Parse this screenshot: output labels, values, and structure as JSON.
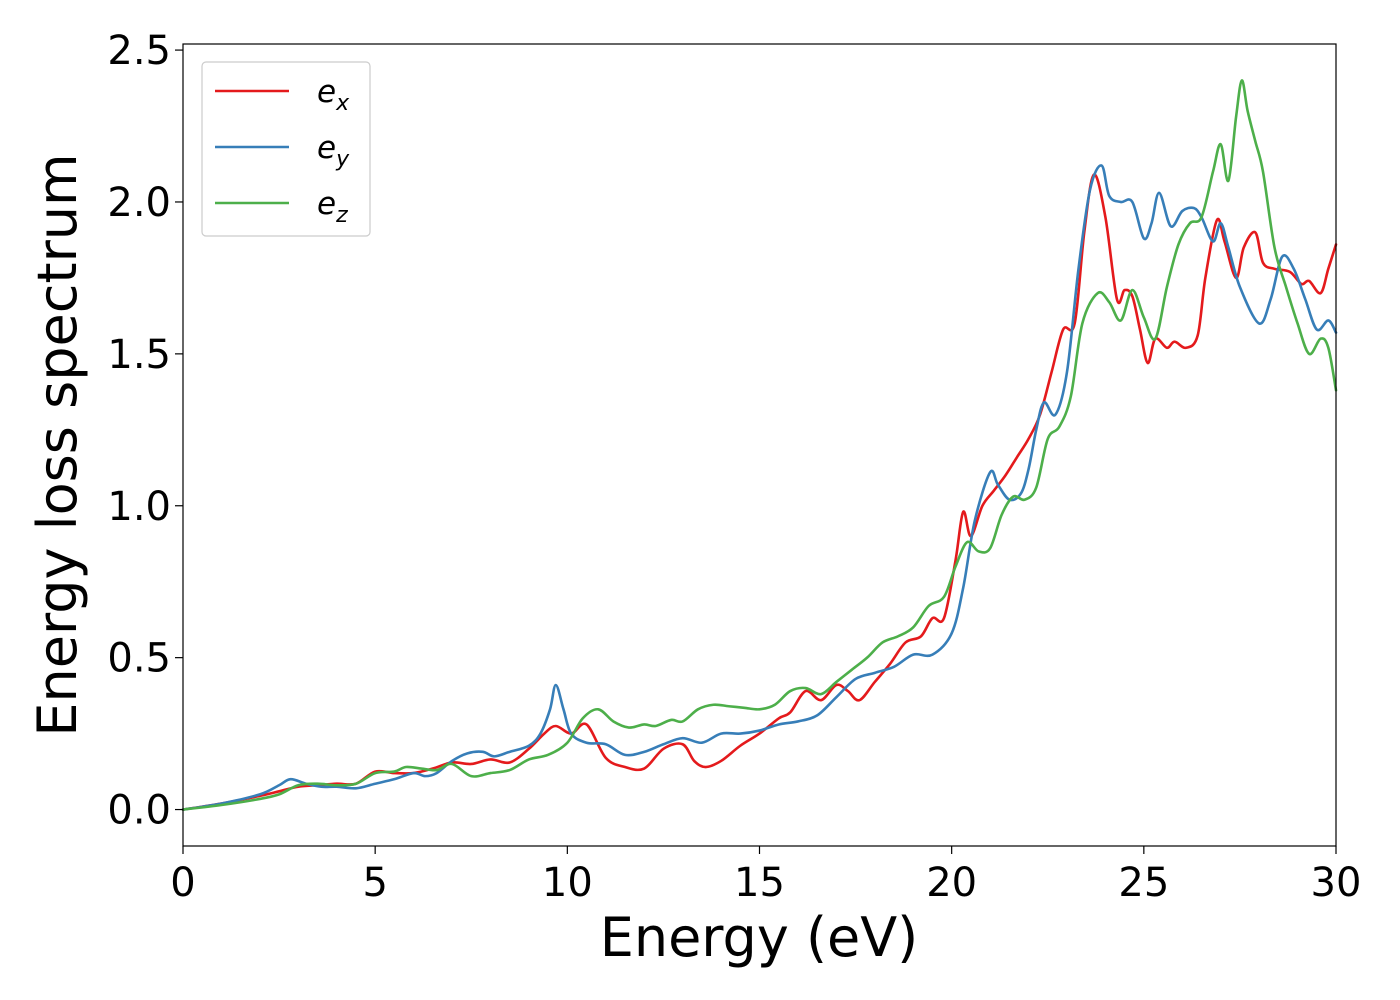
{
  "chart_data": {
    "type": "line",
    "title": "",
    "xlabel": "Energy (eV)",
    "ylabel": "Energy loss spectrum",
    "xlim": [
      0,
      30
    ],
    "ylim": [
      -0.12,
      2.52
    ],
    "xticks": [
      0,
      5,
      10,
      15,
      20,
      25,
      30
    ],
    "xtick_labels": [
      "0",
      "5",
      "10",
      "15",
      "20",
      "25",
      "30"
    ],
    "yticks": [
      0.0,
      0.5,
      1.0,
      1.5,
      2.0,
      2.5
    ],
    "ytick_labels": [
      "0.0",
      "0.5",
      "1.0",
      "1.5",
      "2.0",
      "2.5"
    ],
    "grid": false,
    "legend_position": "top-left",
    "series": [
      {
        "name": "e",
        "subscript": "x",
        "color": "#e41a1c",
        "x": [
          0,
          1,
          2,
          2.5,
          3,
          3.5,
          4,
          4.5,
          5,
          5.5,
          6,
          6.5,
          7,
          7.5,
          8,
          8.5,
          9,
          9.4,
          9.7,
          10.1,
          10.5,
          11,
          11.5,
          12,
          12.5,
          13,
          13.3,
          13.6,
          14,
          14.5,
          15,
          15.5,
          15.8,
          16.2,
          16.6,
          17,
          17.3,
          17.6,
          18,
          18.4,
          18.8,
          19.2,
          19.5,
          19.8,
          20.1,
          20.3,
          20.5,
          20.8,
          21.1,
          21.4,
          21.7,
          22,
          22.3,
          22.6,
          22.9,
          23.2,
          23.45,
          23.7,
          24,
          24.3,
          24.5,
          24.7,
          24.9,
          25.1,
          25.3,
          25.6,
          25.8,
          26.1,
          26.4,
          26.6,
          26.9,
          27.1,
          27.4,
          27.6,
          27.9,
          28.1,
          28.4,
          28.8,
          29.1,
          29.3,
          29.6,
          29.8,
          30
        ],
        "y": [
          0,
          0.02,
          0.045,
          0.06,
          0.075,
          0.08,
          0.085,
          0.085,
          0.125,
          0.12,
          0.12,
          0.135,
          0.155,
          0.15,
          0.165,
          0.155,
          0.2,
          0.25,
          0.275,
          0.25,
          0.28,
          0.17,
          0.14,
          0.135,
          0.2,
          0.215,
          0.16,
          0.14,
          0.16,
          0.21,
          0.25,
          0.3,
          0.32,
          0.39,
          0.36,
          0.41,
          0.39,
          0.36,
          0.42,
          0.48,
          0.55,
          0.57,
          0.63,
          0.63,
          0.82,
          0.98,
          0.9,
          1.0,
          1.05,
          1.1,
          1.16,
          1.22,
          1.3,
          1.44,
          1.58,
          1.6,
          1.9,
          2.09,
          1.95,
          1.68,
          1.71,
          1.69,
          1.58,
          1.47,
          1.55,
          1.52,
          1.54,
          1.52,
          1.56,
          1.75,
          1.94,
          1.87,
          1.75,
          1.85,
          1.9,
          1.8,
          1.78,
          1.77,
          1.73,
          1.74,
          1.7,
          1.78,
          1.86
        ]
      },
      {
        "name": "e",
        "subscript": "y",
        "color": "#377eb8",
        "x": [
          0,
          1,
          2,
          2.5,
          2.8,
          3.2,
          3.6,
          4,
          4.5,
          5,
          5.5,
          6,
          6.3,
          6.6,
          7,
          7.4,
          7.8,
          8.1,
          8.5,
          9,
          9.3,
          9.55,
          9.7,
          9.9,
          10.1,
          10.5,
          11,
          11.5,
          12,
          12.5,
          13,
          13.5,
          14,
          14.5,
          15,
          15.5,
          16,
          16.5,
          17,
          17.5,
          18,
          18.5,
          19,
          19.5,
          20,
          20.3,
          20.6,
          21,
          21.2,
          21.5,
          21.8,
          22,
          22.2,
          22.4,
          22.7,
          23,
          23.3,
          23.6,
          23.9,
          24.1,
          24.4,
          24.7,
          25,
          25.2,
          25.4,
          25.7,
          26,
          26.3,
          26.5,
          26.8,
          27,
          27.2,
          27.5,
          28,
          28.3,
          28.6,
          28.9,
          29.2,
          29.5,
          29.8,
          30
        ],
        "y": [
          0,
          0.02,
          0.05,
          0.08,
          0.1,
          0.085,
          0.075,
          0.075,
          0.07,
          0.085,
          0.1,
          0.12,
          0.11,
          0.12,
          0.16,
          0.185,
          0.19,
          0.175,
          0.19,
          0.21,
          0.25,
          0.33,
          0.41,
          0.33,
          0.25,
          0.22,
          0.215,
          0.18,
          0.19,
          0.215,
          0.235,
          0.22,
          0.25,
          0.25,
          0.26,
          0.28,
          0.29,
          0.31,
          0.37,
          0.43,
          0.45,
          0.47,
          0.51,
          0.51,
          0.58,
          0.73,
          0.95,
          1.11,
          1.07,
          1.02,
          1.04,
          1.12,
          1.25,
          1.34,
          1.3,
          1.44,
          1.78,
          2.04,
          2.12,
          2.02,
          2.0,
          2.0,
          1.88,
          1.93,
          2.03,
          1.92,
          1.97,
          1.98,
          1.95,
          1.87,
          1.93,
          1.85,
          1.72,
          1.6,
          1.68,
          1.82,
          1.78,
          1.68,
          1.58,
          1.61,
          1.57
        ]
      },
      {
        "name": "e",
        "subscript": "z",
        "color": "#4daf4a",
        "x": [
          0,
          1,
          2,
          2.5,
          3,
          3.5,
          4,
          4.5,
          5,
          5.5,
          5.8,
          6.2,
          6.6,
          7,
          7.5,
          8,
          8.5,
          9,
          9.5,
          10,
          10.4,
          10.8,
          11.2,
          11.6,
          12,
          12.3,
          12.7,
          13,
          13.4,
          13.8,
          14.2,
          14.6,
          15,
          15.4,
          15.8,
          16.2,
          16.6,
          17,
          17.4,
          17.8,
          18.2,
          18.6,
          19,
          19.4,
          19.8,
          20.1,
          20.4,
          20.7,
          21,
          21.3,
          21.6,
          21.9,
          22.2,
          22.5,
          22.8,
          23.1,
          23.4,
          23.8,
          24.1,
          24.4,
          24.7,
          25,
          25.3,
          25.6,
          25.9,
          26.2,
          26.5,
          26.8,
          27,
          27.2,
          27.4,
          27.55,
          27.7,
          27.9,
          28.1,
          28.4,
          28.7,
          29,
          29.3,
          29.6,
          29.8,
          30
        ],
        "y": [
          0,
          0.015,
          0.035,
          0.05,
          0.08,
          0.085,
          0.08,
          0.085,
          0.12,
          0.125,
          0.14,
          0.135,
          0.13,
          0.15,
          0.11,
          0.12,
          0.13,
          0.165,
          0.18,
          0.22,
          0.3,
          0.33,
          0.29,
          0.27,
          0.28,
          0.275,
          0.295,
          0.29,
          0.33,
          0.345,
          0.34,
          0.335,
          0.33,
          0.345,
          0.39,
          0.4,
          0.38,
          0.42,
          0.46,
          0.5,
          0.55,
          0.57,
          0.6,
          0.67,
          0.7,
          0.8,
          0.88,
          0.85,
          0.86,
          0.97,
          1.03,
          1.02,
          1.06,
          1.22,
          1.26,
          1.36,
          1.6,
          1.7,
          1.67,
          1.61,
          1.71,
          1.62,
          1.55,
          1.72,
          1.86,
          1.93,
          1.95,
          2.1,
          2.19,
          2.07,
          2.28,
          2.4,
          2.3,
          2.2,
          2.1,
          1.85,
          1.72,
          1.6,
          1.5,
          1.55,
          1.52,
          1.38
        ]
      }
    ]
  }
}
